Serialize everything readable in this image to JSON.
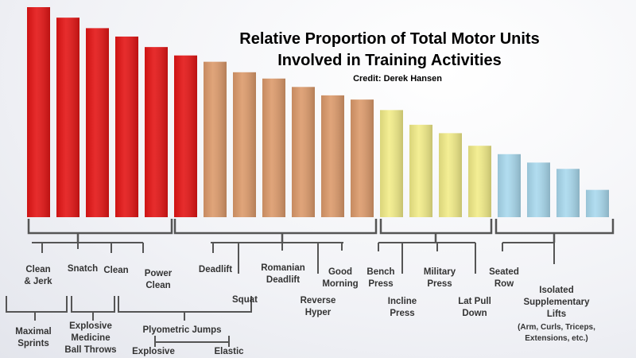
{
  "chart_data": {
    "type": "bar",
    "title": "Relative Proportion of Total Motor Units",
    "title_line2": "Involved in Training Activities",
    "subtitle": "Credit: Derek Hansen",
    "xlabel": "",
    "ylabel": "",
    "grid": false,
    "ylim": [
      0,
      100
    ],
    "values": [
      100,
      95,
      90,
      86,
      81,
      77,
      74,
      69,
      66,
      62,
      58,
      56,
      51,
      44,
      40,
      34,
      30,
      26,
      23,
      13
    ],
    "colors": [
      "#e41515",
      "#e41515",
      "#e41515",
      "#e41515",
      "#e41515",
      "#e41515",
      "#dc9a6b",
      "#dc9a6b",
      "#dc9a6b",
      "#dc9a6b",
      "#dc9a6b",
      "#dc9a6b",
      "#f2ec88",
      "#f2ec88",
      "#f2ec88",
      "#f2ec88",
      "#a9d9ee",
      "#a9d9ee",
      "#a9d9ee",
      "#a9d9ee"
    ],
    "groups": [
      {
        "labels": [
          [
            "Clean",
            "& Jerk"
          ],
          [
            "Snatch"
          ],
          [
            "Clean"
          ],
          [
            "Power",
            "Clean"
          ]
        ]
      },
      {
        "labels": [
          [
            "Deadlift"
          ],
          [
            "Squat"
          ],
          [
            "Romanian",
            "Deadlift"
          ],
          [
            "Reverse",
            "Hyper"
          ],
          [
            "Good",
            "Morning"
          ]
        ]
      },
      {
        "labels": [
          [
            "Bench",
            "Press"
          ],
          [
            "Incline",
            "Press"
          ],
          [
            "Military",
            "Press"
          ],
          [
            "Lat Pull",
            "Down"
          ],
          [
            "Seated",
            "Row"
          ]
        ]
      },
      {
        "labels": [
          [
            "Isolated",
            "Supplementary",
            "Lifts"
          ]
        ],
        "note": [
          "(Arm, Curls, Triceps,",
          "Extensions, etc.)"
        ]
      }
    ],
    "sub_groups": [
      {
        "labels": [
          "Maximal",
          "Sprints"
        ]
      },
      {
        "labels": [
          "Explosive",
          "Medicine",
          "Ball Throws"
        ]
      },
      {
        "labels": [
          "Plyometric Jumps"
        ],
        "children": [
          "Explosive",
          "Elastic"
        ]
      }
    ]
  }
}
